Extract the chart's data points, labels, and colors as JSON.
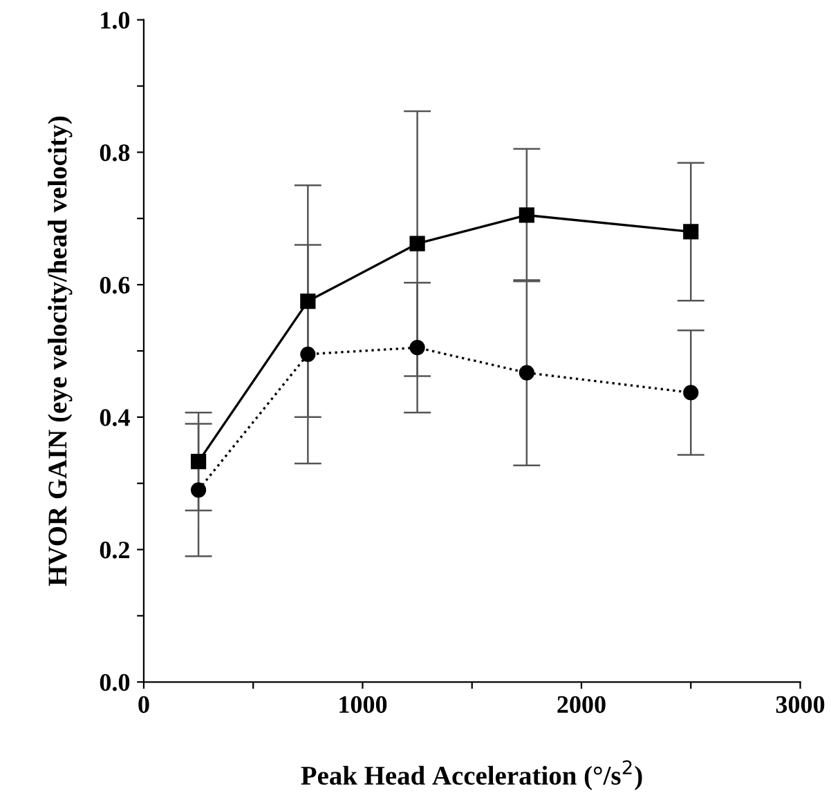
{
  "chart_data": {
    "type": "line",
    "xlabel": "Peak Head Acceleration (°/s$^{2}$)",
    "ylabel": "HVOR GAIN (eye velocity/head velocity)",
    "x": [
      250,
      750,
      1250,
      1750,
      2500
    ],
    "series": [
      {
        "color": "#000000",
        "marker": "square",
        "line_style": "solid",
        "values": [
          0.333,
          0.575,
          0.662,
          0.705,
          0.68
        ],
        "errors": [
          0.074,
          0.175,
          0.2,
          0.1,
          0.104
        ]
      },
      {
        "color": "#000000",
        "marker": "circle",
        "line_style": "dotted",
        "values": [
          0.29,
          0.495,
          0.505,
          0.467,
          0.437
        ],
        "errors": [
          0.1,
          0.165,
          0.098,
          0.14,
          0.094
        ]
      }
    ],
    "xlim": [
      0,
      3000
    ],
    "ylim": [
      0,
      1.0
    ],
    "xticks": [
      0,
      {
        "value": 500,
        "label": null
      },
      1000,
      {
        "value": 1500,
        "label": null
      },
      2000,
      {
        "value": 2500,
        "label": null
      },
      3000
    ],
    "yticks": [
      {
        "value": 0,
        "label": "0.0"
      },
      {
        "value": 0.1,
        "label": null
      },
      0.2,
      {
        "value": 0.3,
        "label": null
      },
      0.4,
      {
        "value": 0.5,
        "label": null
      },
      0.6,
      {
        "value": 0.7,
        "label": null
      },
      0.8,
      {
        "value": 0.9,
        "label": null
      },
      {
        "value": 1.0,
        "label": "1.0"
      }
    ],
    "grid": false
  }
}
